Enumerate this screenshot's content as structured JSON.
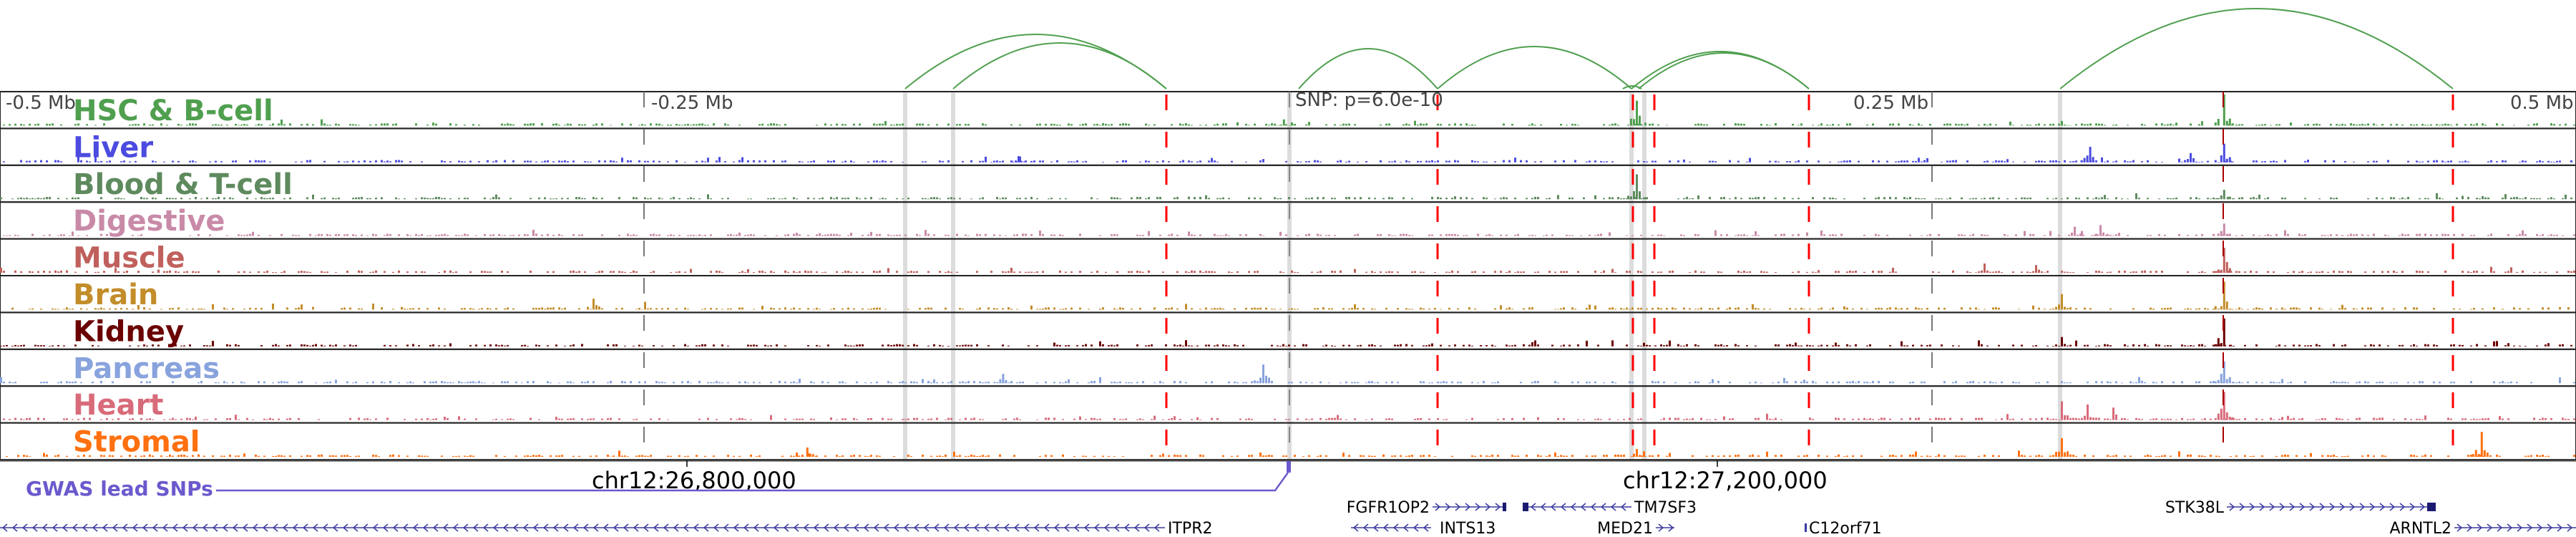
{
  "axis": {
    "left": "-0.5 Mb",
    "mid_left": "-0.25 Mb",
    "snp": "SNP: p=6.0e-10",
    "mid_right": "0.25 Mb",
    "right": "0.5 Mb"
  },
  "tracks": [
    {
      "label": "HSC & B-cell",
      "color": "#4f9f4f",
      "peaks": [
        [
          135,
          0.8
        ],
        [
          363,
          1.0
        ],
        [
          -2,
          0.2
        ],
        [
          300,
          0.15
        ]
      ]
    },
    {
      "label": "Liver",
      "color": "#4b4be0",
      "peaks": [
        [
          311,
          0.5
        ],
        [
          350,
          0.3
        ],
        [
          363,
          0.6
        ],
        [
          -105,
          0.2
        ]
      ]
    },
    {
      "label": "Blood & T-cell",
      "color": "#5e8a5e",
      "peaks": [
        [
          135,
          0.8
        ],
        [
          363,
          0.3
        ]
      ]
    },
    {
      "label": "Digestive",
      "color": "#c98aa8",
      "peaks": [
        [
          305,
          0.3
        ],
        [
          315,
          0.35
        ],
        [
          363,
          0.4
        ]
      ]
    },
    {
      "label": "Muscle",
      "color": "#c0605c",
      "peaks": [
        [
          363,
          0.8
        ],
        [
          270,
          0.3
        ],
        [
          290,
          0.25
        ]
      ]
    },
    {
      "label": "Brain",
      "color": "#c38d2a",
      "peaks": [
        [
          -270,
          0.35
        ],
        [
          -250,
          0.25
        ],
        [
          300,
          0.5
        ],
        [
          363,
          0.9
        ]
      ]
    },
    {
      "label": "Kidney",
      "color": "#6b0000",
      "peaks": [
        [
          363,
          0.9
        ],
        [
          300,
          0.3
        ],
        [
          -40,
          0.2
        ]
      ]
    },
    {
      "label": "Pancreas",
      "color": "#88a3dd",
      "peaks": [
        [
          -10,
          0.6
        ],
        [
          -111,
          0.3
        ],
        [
          363,
          0.7
        ],
        [
          330,
          0.2
        ]
      ]
    },
    {
      "label": "Heart",
      "color": "#d86b7a",
      "peaks": [
        [
          300,
          0.6
        ],
        [
          310,
          0.5
        ],
        [
          320,
          0.4
        ],
        [
          363,
          0.9
        ]
      ]
    },
    {
      "label": "Stromal",
      "color": "#ff7010",
      "peaks": [
        [
          463,
          0.8
        ],
        [
          300,
          0.6
        ],
        [
          -187,
          0.3
        ],
        [
          -260,
          0.2
        ],
        [
          135,
          0.25
        ]
      ]
    }
  ],
  "ruler": {
    "left": "chr12:26,800,000",
    "right": "chr12:27,200,000"
  },
  "gwas": {
    "label": "GWAS lead SNPs"
  },
  "genes": [
    {
      "name": "ITPR2"
    },
    {
      "name": "FGFR1OP2"
    },
    {
      "name": "INTS13"
    },
    {
      "name": "TM7SF3"
    },
    {
      "name": "MED21"
    },
    {
      "name": "C12orf71"
    },
    {
      "name": "STK38L"
    },
    {
      "name": "ARNTL2"
    }
  ]
}
